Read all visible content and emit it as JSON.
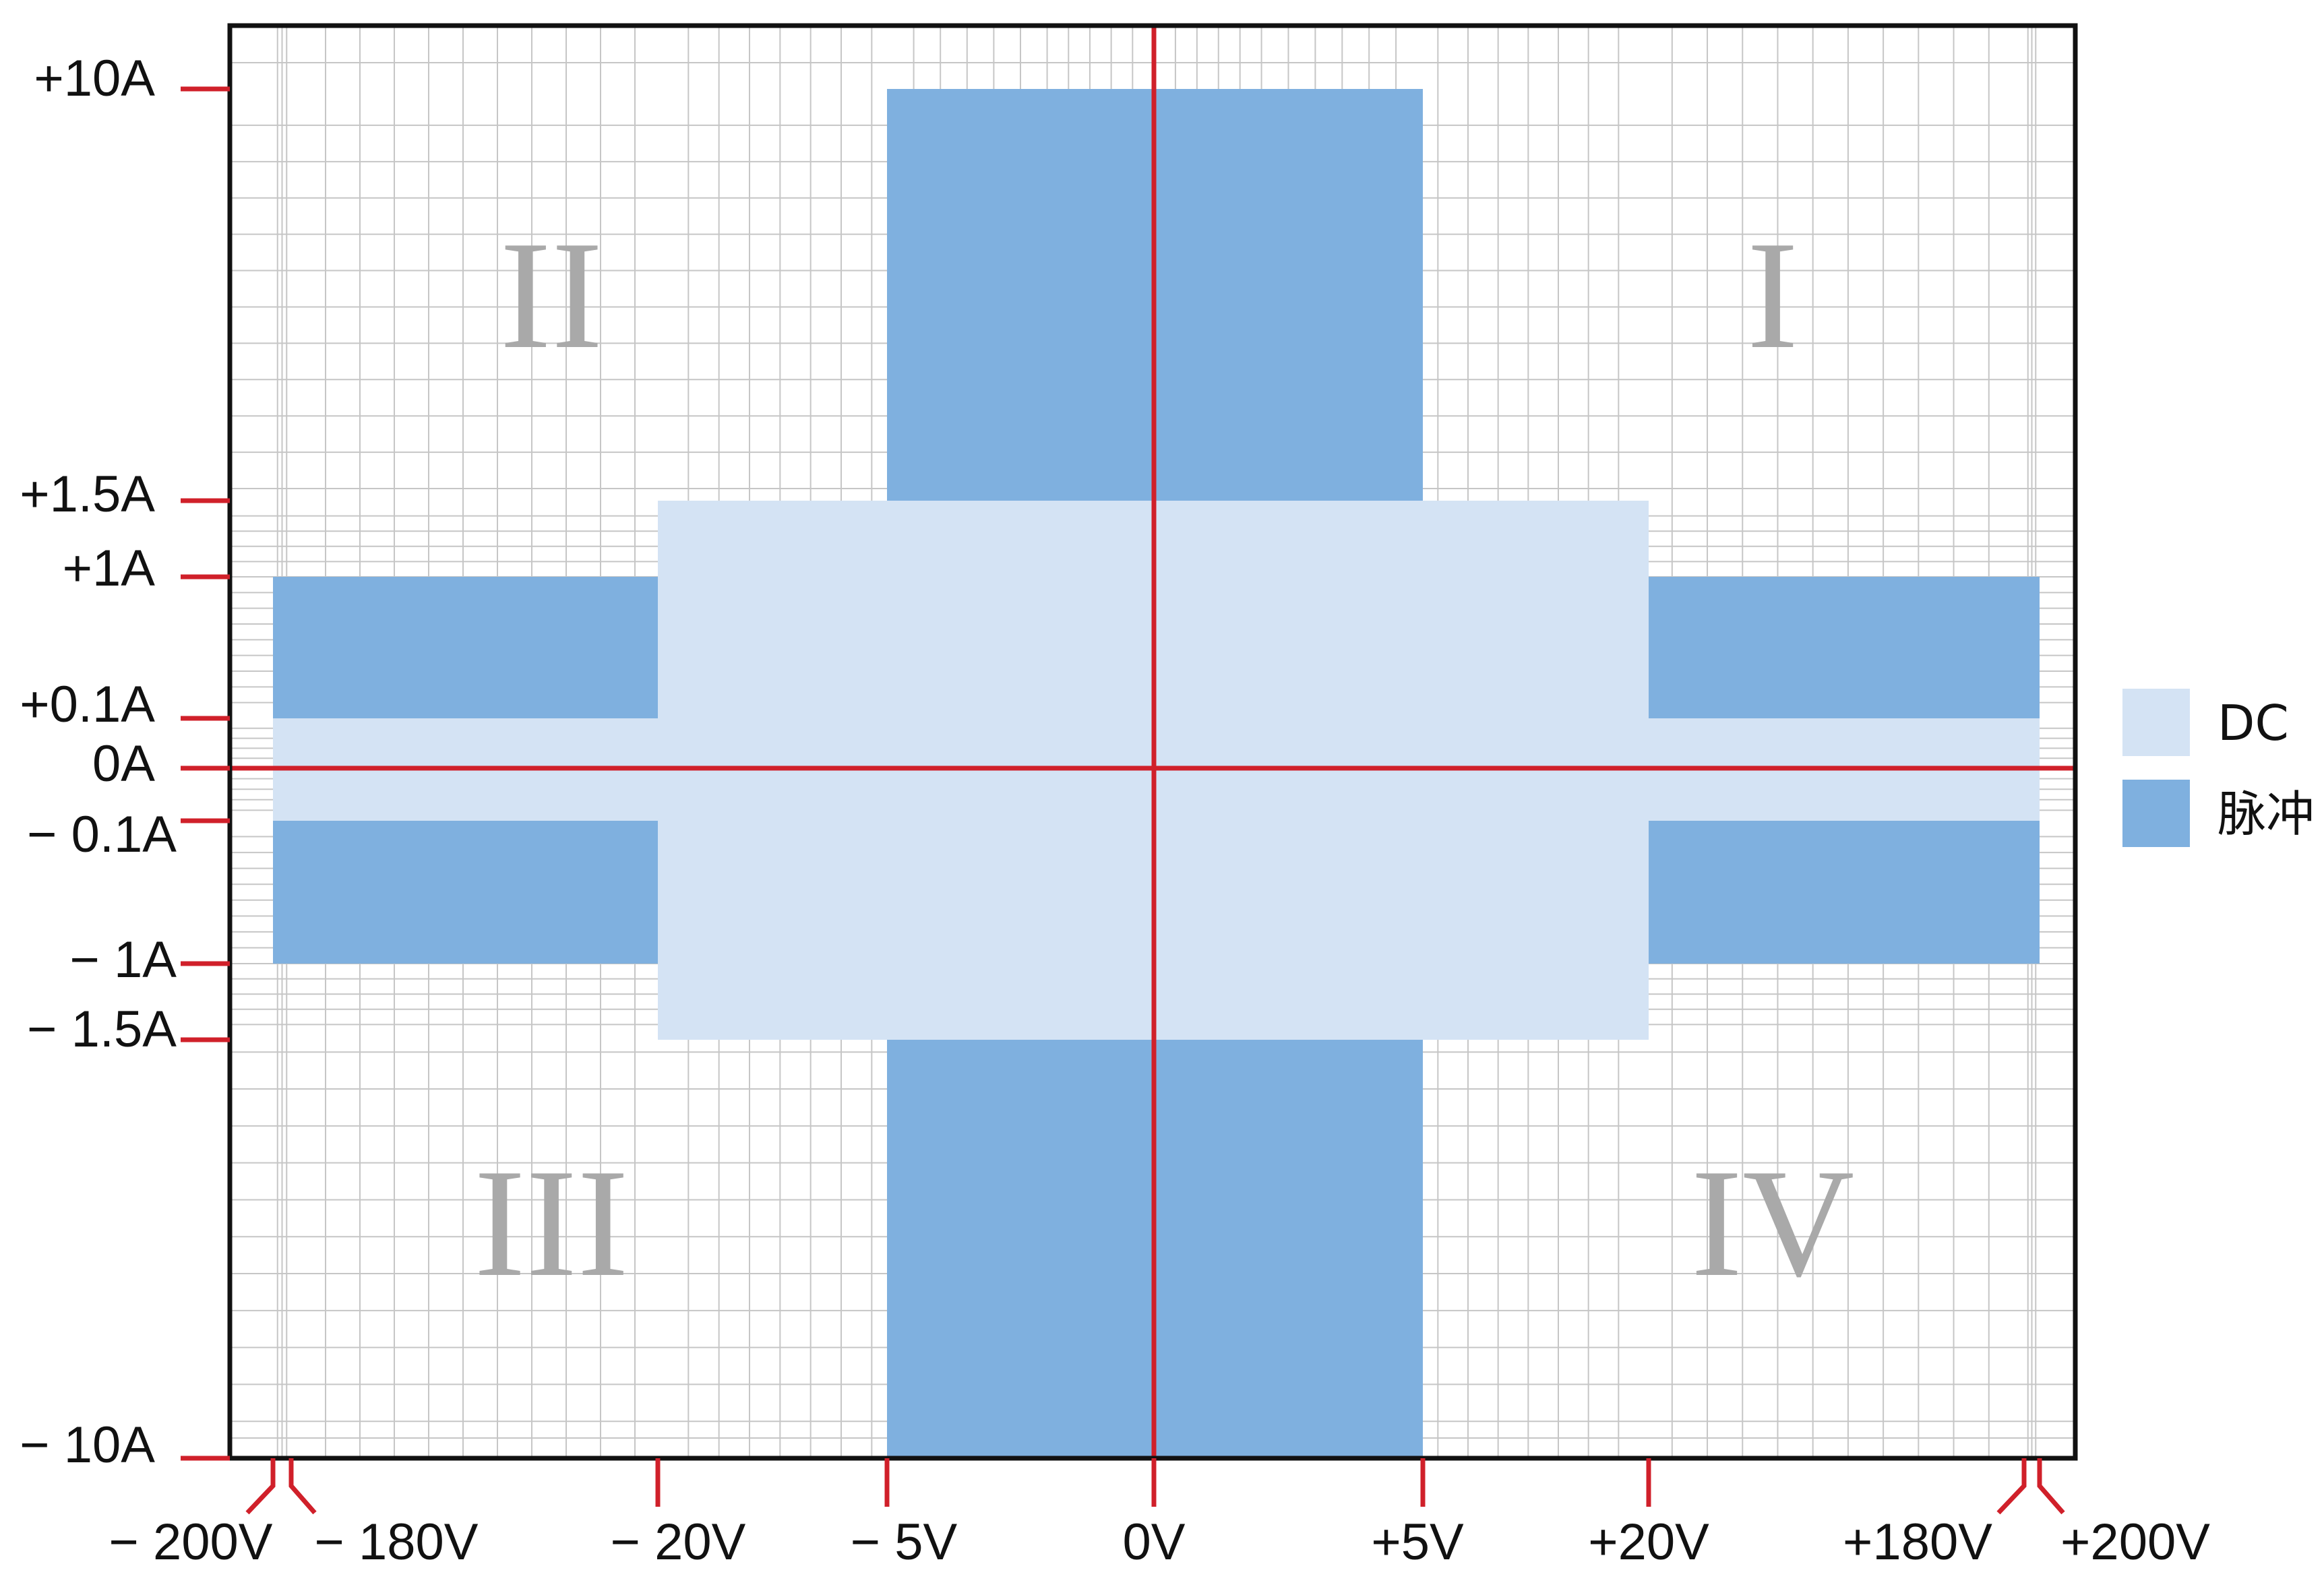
{
  "chart_data": {
    "type": "area",
    "title": "",
    "xlabel": "",
    "ylabel": "",
    "x_ticks": [
      "− 200V",
      "− 180V",
      "− 20V",
      "− 5V",
      "0V",
      "+5V",
      "+20V",
      "+180V",
      "+200V"
    ],
    "y_ticks": [
      "+10A",
      "+1.5A",
      "+1A",
      "+0.1A",
      "0A",
      "− 0.1A",
      "− 1A",
      "− 1.5A",
      "− 10A"
    ],
    "quadrants": [
      "I",
      "II",
      "III",
      "IV"
    ],
    "series": [
      {
        "name": "DC",
        "color": "#d4e3f4",
        "regions": [
          {
            "voltage": [
              -200,
              200
            ],
            "current": [
              -0.1,
              0.1
            ]
          },
          {
            "voltage": [
              -20,
              20
            ],
            "current": [
              -1.5,
              1.5
            ]
          }
        ]
      },
      {
        "name": "脉冲",
        "color": "#7fb0df",
        "regions": [
          {
            "voltage": [
              -5,
              5
            ],
            "current": [
              -10,
              10
            ]
          },
          {
            "voltage": [
              -200,
              -20
            ],
            "current": [
              -1,
              1
            ]
          },
          {
            "voltage": [
              20,
              200
            ],
            "current": [
              -1,
              1
            ]
          }
        ]
      }
    ],
    "axis_color": "#d0202a",
    "grid": true,
    "legend_position": "right"
  }
}
